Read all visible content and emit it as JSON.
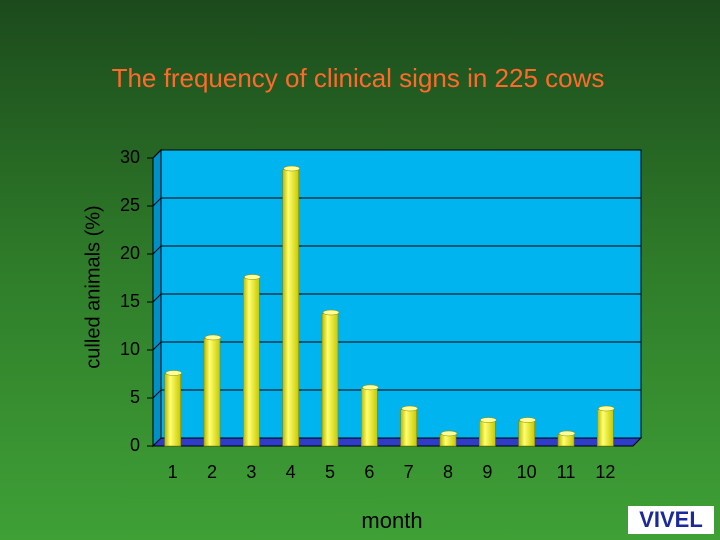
{
  "chart_data": {
    "type": "bar",
    "title": "The frequency of clinical signs in 225 cows",
    "y_label": "culled animals (%)",
    "x_label": "month",
    "categories": [
      "1",
      "2",
      "3",
      "4",
      "5",
      "6",
      "7",
      "8",
      "9",
      "10",
      "11",
      "12"
    ],
    "values": [
      7.5,
      11.2,
      17.5,
      28.8,
      13.8,
      6.0,
      3.8,
      1.2,
      2.6,
      2.6,
      1.2,
      3.8
    ],
    "color": "#f2f21a",
    "wall_color": "#00b4f0",
    "floor_color": "#2e3cc8",
    "ylim": [
      0,
      30
    ],
    "yticks": [
      0,
      5,
      10,
      15,
      20,
      25,
      30
    ],
    "grid": true
  },
  "logo": "VIVEL"
}
